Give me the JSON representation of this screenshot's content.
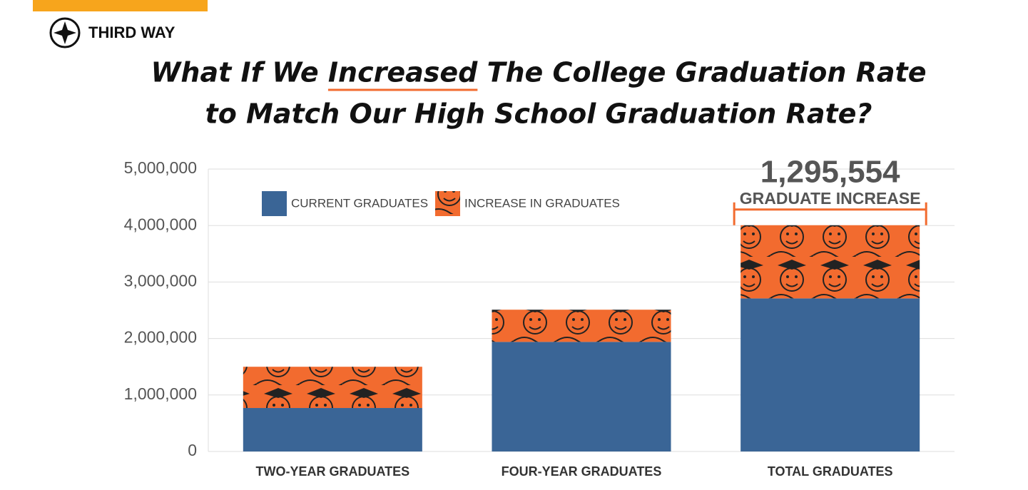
{
  "brand": "THIRD WAY",
  "chart_data": {
    "type": "stacked-bar",
    "title_lines": [
      "What If We Increased The College Graduation Rate",
      "to Match Our High School Graduation Rate?"
    ],
    "categories": [
      "TWO-YEAR GRADUATES",
      "FOUR-YEAR GRADUATES",
      "TOTAL GRADUATES"
    ],
    "series": [
      {
        "name": "CURRENT GRADUATES",
        "color": "#3a6596",
        "values": [
          770000,
          1940000,
          2710000
        ]
      },
      {
        "name": "INCREASE IN GRADUATES",
        "color": "#f26b2f",
        "values": [
          730000,
          570000,
          1295554
        ],
        "value_labels": [
          null,
          null,
          "1,295,554"
        ]
      }
    ],
    "annotation": "GRADUATE INCREASE",
    "ylim": [
      0,
      5000000
    ],
    "yticks": [
      0,
      {
        "value": 1000000,
        "label": "1,000,000"
      },
      {
        "value": 2000000,
        "label": "2,000,000"
      },
      {
        "value": 3000000,
        "label": "3,000,000"
      },
      {
        "value": 4000000,
        "label": "4,000,000"
      },
      {
        "value": 5000000,
        "label": "5,000,000"
      }
    ],
    "grid": true
  }
}
